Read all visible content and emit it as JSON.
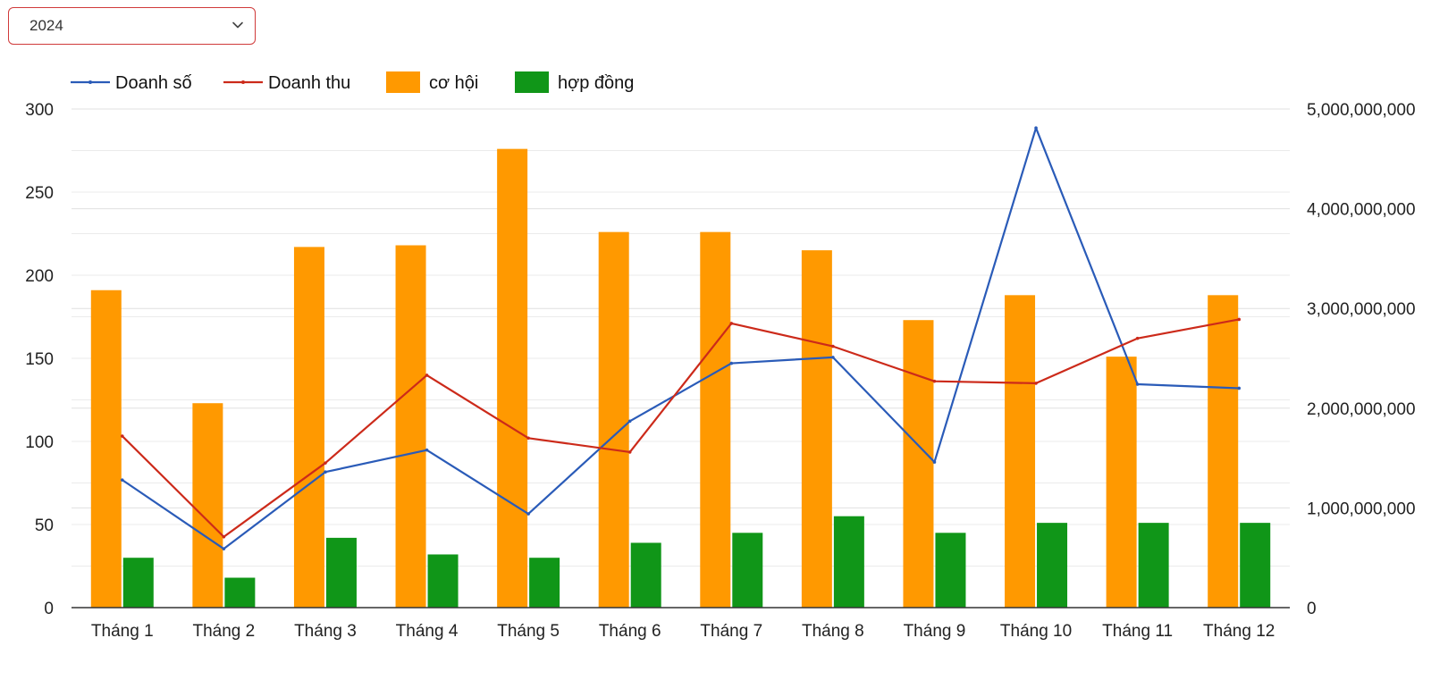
{
  "year_select": {
    "value": "2024"
  },
  "legend": [
    {
      "label": "Doanh số",
      "kind": "line",
      "color": "#2a5bb8"
    },
    {
      "label": "Doanh thu",
      "kind": "line",
      "color": "#cc2a1a"
    },
    {
      "label": "cơ hội",
      "kind": "bar",
      "color": "#ff9900"
    },
    {
      "label": "hợp đồng",
      "kind": "bar",
      "color": "#109618"
    }
  ],
  "chart_data": {
    "type": "bar",
    "categories": [
      "Tháng 1",
      "Tháng 2",
      "Tháng 3",
      "Tháng 4",
      "Tháng 5",
      "Tháng 6",
      "Tháng 7",
      "Tháng 8",
      "Tháng 9",
      "Tháng 10",
      "Tháng 11",
      "Tháng 12"
    ],
    "left_axis": {
      "ticks": [
        "0",
        "50",
        "100",
        "150",
        "200",
        "250",
        "300"
      ],
      "ylim": [
        0,
        300
      ]
    },
    "right_axis": {
      "ticks": [
        "0",
        "1,000,000,000",
        "2,000,000,000",
        "3,000,000,000",
        "4,000,000,000",
        "5,000,000,000"
      ],
      "ylim": [
        0,
        5000000000
      ]
    },
    "grid": true,
    "legend_position": "top-left",
    "series": [
      {
        "name": "cơ hội",
        "type": "bar",
        "axis": "left",
        "color": "#ff9900",
        "values": [
          191,
          123,
          217,
          218,
          276,
          226,
          226,
          215,
          173,
          188,
          151,
          188
        ]
      },
      {
        "name": "hợp đồng",
        "type": "bar",
        "axis": "left",
        "color": "#109618",
        "values": [
          30,
          18,
          42,
          32,
          30,
          39,
          45,
          55,
          45,
          51,
          51,
          51
        ]
      },
      {
        "name": "Doanh số",
        "type": "line",
        "axis": "right",
        "color": "#2a5bb8",
        "values": [
          1280000000,
          590000000,
          1360000000,
          1580000000,
          940000000,
          1870000000,
          2450000000,
          2510000000,
          1460000000,
          4810000000,
          2240000000,
          2200000000
        ]
      },
      {
        "name": "Doanh thu",
        "type": "line",
        "axis": "right",
        "color": "#cc2a1a",
        "values": [
          1720000000,
          710000000,
          1450000000,
          2330000000,
          1700000000,
          1560000000,
          2850000000,
          2620000000,
          2270000000,
          2250000000,
          2700000000,
          2890000000
        ]
      }
    ]
  }
}
